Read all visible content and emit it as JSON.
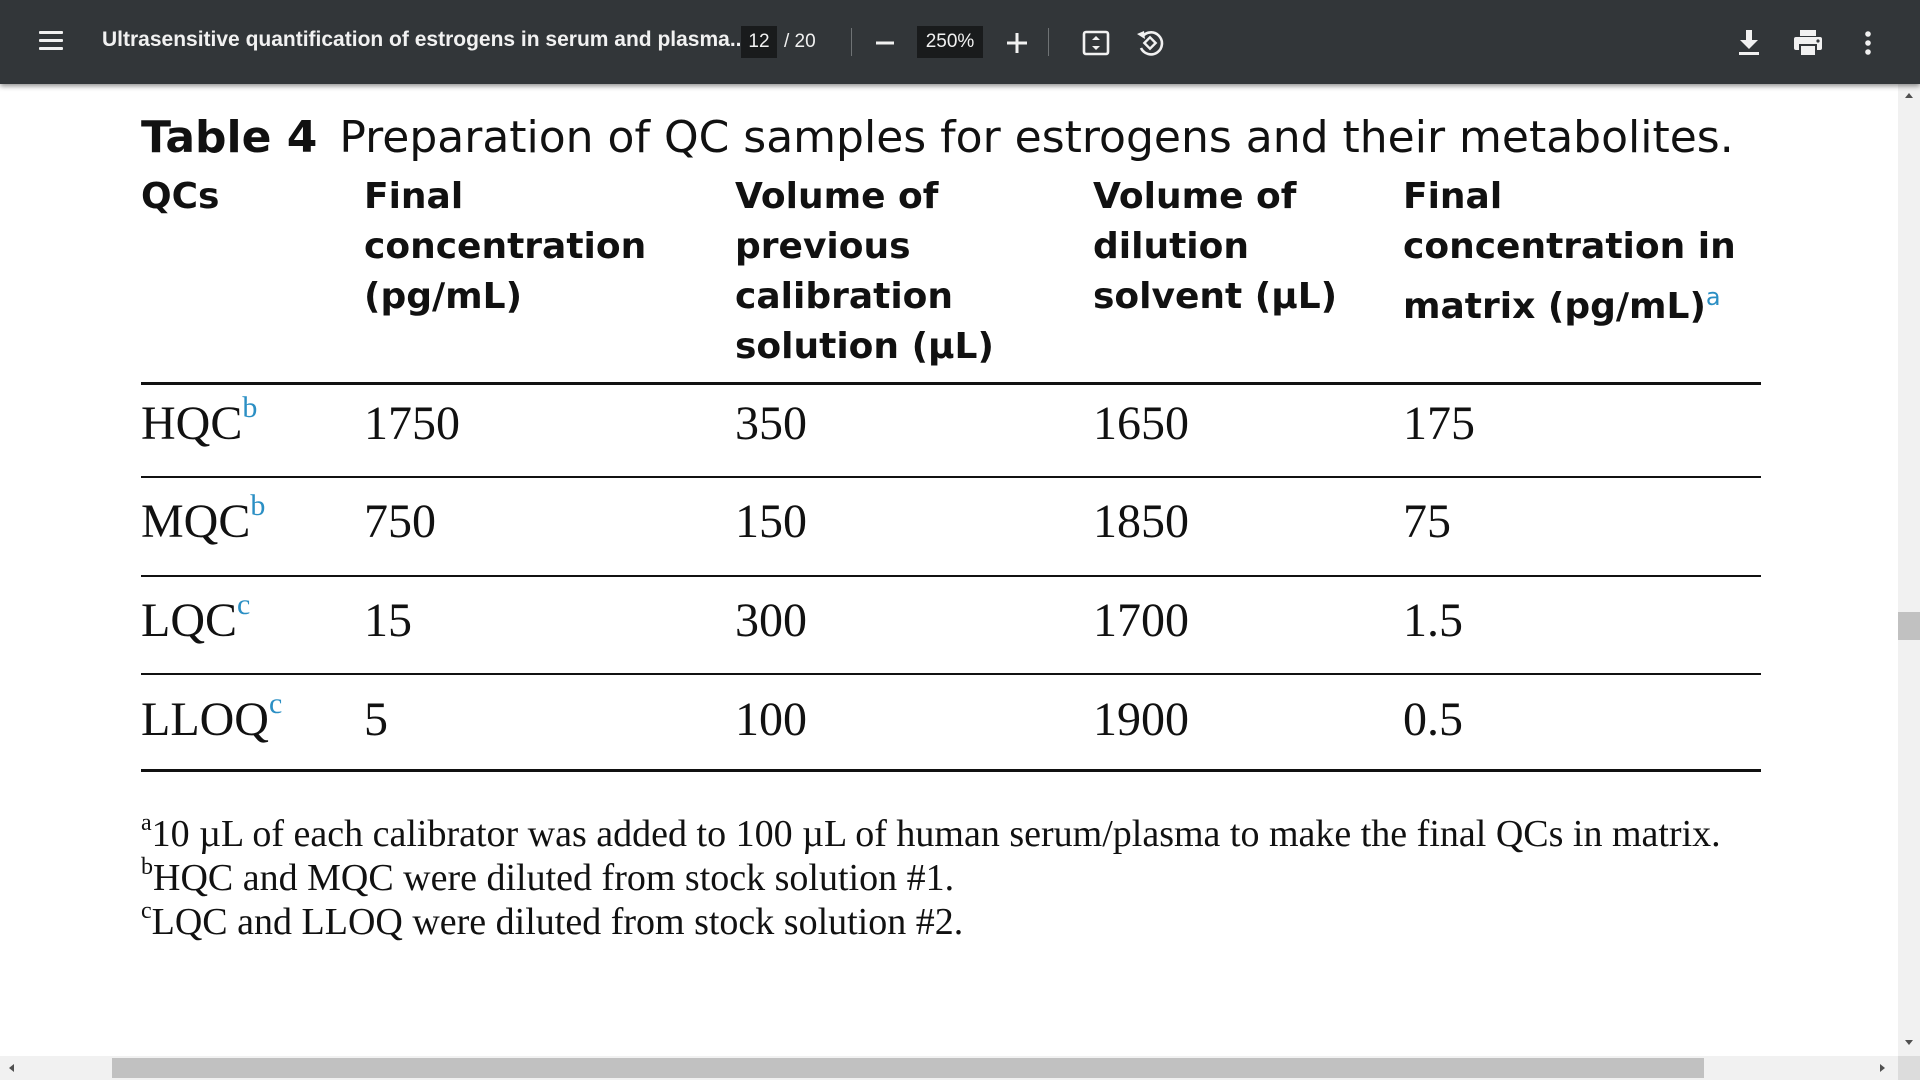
{
  "toolbar": {
    "title": "Ultrasensitive quantification of estrogens in serum and plasma...",
    "page_current": "12",
    "page_total": "/ 20",
    "zoom": "250%",
    "icons": [
      "menu-icon",
      "zoom-out-icon",
      "zoom-in-icon",
      "fit-page-icon",
      "rotate-icon",
      "download-icon",
      "print-icon",
      "more-vert-icon"
    ]
  },
  "document": {
    "caption_label": "Table 4",
    "caption_text": "Preparation of QC samples for estrogens and their metabolites.",
    "headers": [
      "QCs",
      "Final\nconcentration\n(pg/mL)",
      "Volume of\nprevious\ncalibration\nsolution (µL)",
      "Volume of\ndilution\nsolvent (µL)",
      "Final\nconcentration in\nmatrix (pg/mL)"
    ],
    "header_last_sup": "a",
    "rows": [
      {
        "qc": "HQC",
        "sup": "b",
        "final_conc": "1750",
        "vol_prev": "350",
        "vol_dil": "1650",
        "final_matrix": "175"
      },
      {
        "qc": "MQC",
        "sup": "b",
        "final_conc": "750",
        "vol_prev": "150",
        "vol_dil": "1850",
        "final_matrix": "75"
      },
      {
        "qc": "LQC",
        "sup": "c",
        "final_conc": "15",
        "vol_prev": "300",
        "vol_dil": "1700",
        "final_matrix": "1.5"
      },
      {
        "qc": "LLOQ",
        "sup": "c",
        "final_conc": "5",
        "vol_prev": "100",
        "vol_dil": "1900",
        "final_matrix": "0.5"
      }
    ],
    "footnotes": [
      {
        "mark": "a",
        "text": "10 µL of each calibrator was added to 100 µL of human serum/plasma to make the final QCs in matrix."
      },
      {
        "mark": "b",
        "text": "HQC and MQC were diluted from stock solution #1."
      },
      {
        "mark": "c",
        "text": "LQC and LLOQ were diluted from stock solution #2."
      }
    ]
  },
  "colors": {
    "toolbar_bg": "#323639",
    "footnote_link": "#2b8fc4",
    "scrollbar_thumb": "#c1c1c1"
  }
}
